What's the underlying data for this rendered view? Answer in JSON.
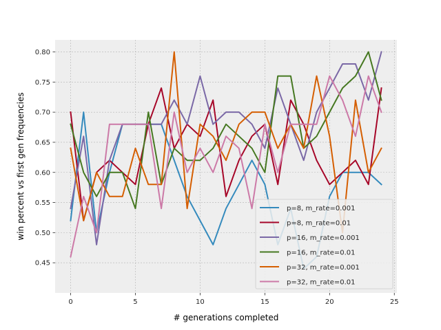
{
  "chart_data": {
    "type": "line",
    "title": "",
    "xlabel": "# generations completed",
    "ylabel": "win percent vs first gen frequencies",
    "xlim": [
      -1.2,
      25.2
    ],
    "ylim": [
      0.4,
      0.82
    ],
    "xticks": [
      0,
      5,
      10,
      15,
      20,
      25
    ],
    "yticks": [
      0.45,
      0.5,
      0.55,
      0.6,
      0.65,
      0.7,
      0.75,
      0.8
    ],
    "grid": true,
    "legend_position": "lower-right",
    "x": [
      0,
      1,
      2,
      3,
      4,
      5,
      6,
      7,
      8,
      9,
      10,
      11,
      12,
      13,
      14,
      15,
      16,
      17,
      18,
      19,
      20,
      21,
      22,
      23,
      24
    ],
    "series": [
      {
        "name": "p=8, m_rate=0.001",
        "color": "#348ABD",
        "values": [
          0.52,
          0.7,
          0.5,
          0.6,
          0.68,
          0.68,
          0.68,
          0.68,
          0.62,
          0.56,
          0.52,
          0.48,
          0.54,
          0.58,
          0.62,
          0.58,
          0.48,
          0.54,
          0.44,
          0.46,
          0.56,
          0.6,
          0.6,
          0.6,
          0.58
        ]
      },
      {
        "name": "p=8, m_rate=0.01",
        "color": "#A60628",
        "values": [
          0.7,
          0.52,
          0.6,
          0.62,
          0.6,
          0.58,
          0.68,
          0.74,
          0.64,
          0.68,
          0.66,
          0.72,
          0.56,
          0.62,
          0.66,
          0.68,
          0.58,
          0.72,
          0.68,
          0.62,
          0.58,
          0.6,
          0.62,
          0.58,
          0.74
        ]
      },
      {
        "name": "p=16, m_rate=0.001",
        "color": "#7A68A6",
        "values": [
          0.54,
          0.66,
          0.48,
          0.62,
          0.68,
          0.68,
          0.68,
          0.68,
          0.72,
          0.68,
          0.76,
          0.68,
          0.7,
          0.7,
          0.68,
          0.64,
          0.74,
          0.68,
          0.62,
          0.7,
          0.74,
          0.78,
          0.78,
          0.72,
          0.8
        ]
      },
      {
        "name": "p=16, m_rate=0.01",
        "color": "#467821",
        "values": [
          0.68,
          0.6,
          0.56,
          0.6,
          0.6,
          0.54,
          0.7,
          0.58,
          0.64,
          0.62,
          0.62,
          0.64,
          0.68,
          0.66,
          0.64,
          0.6,
          0.76,
          0.76,
          0.64,
          0.66,
          0.7,
          0.74,
          0.76,
          0.8,
          0.72
        ]
      },
      {
        "name": "p=32, m_rate=0.001",
        "color": "#D55E00",
        "values": [
          0.64,
          0.52,
          0.6,
          0.56,
          0.56,
          0.64,
          0.58,
          0.58,
          0.8,
          0.54,
          0.68,
          0.66,
          0.62,
          0.68,
          0.7,
          0.7,
          0.64,
          0.68,
          0.64,
          0.76,
          0.66,
          0.5,
          0.72,
          0.6,
          0.64
        ]
      },
      {
        "name": "p=32, m_rate=0.01",
        "color": "#CC79A7",
        "values": [
          0.46,
          0.56,
          0.5,
          0.68,
          0.68,
          0.68,
          0.68,
          0.54,
          0.7,
          0.6,
          0.64,
          0.6,
          0.66,
          0.64,
          0.54,
          0.68,
          0.6,
          0.68,
          0.68,
          0.68,
          0.76,
          0.72,
          0.66,
          0.76,
          0.7
        ]
      }
    ]
  }
}
